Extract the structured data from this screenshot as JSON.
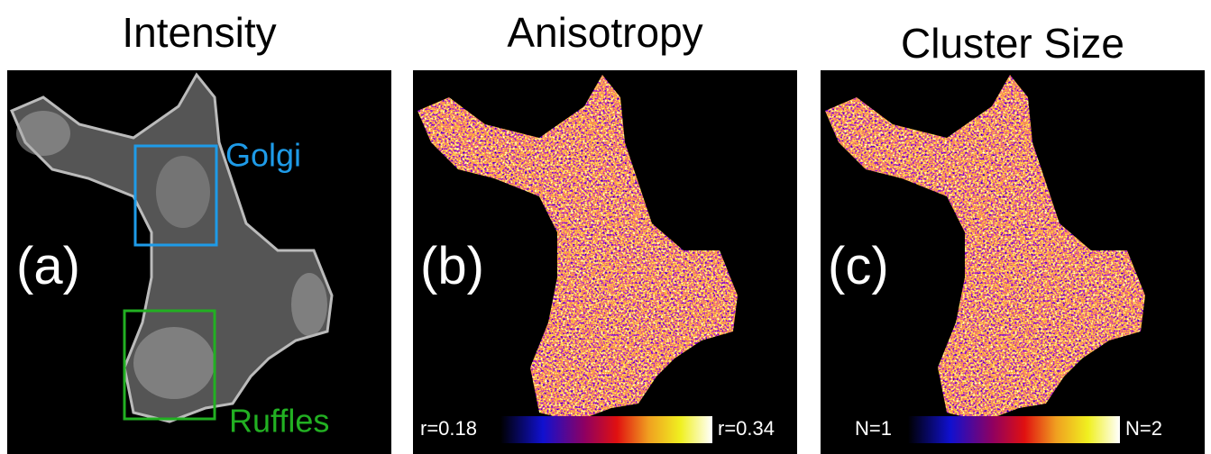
{
  "panels": [
    {
      "title": "Intensity",
      "label": "(a)",
      "boxes": [
        {
          "label": "Golgi"
        },
        {
          "label": "Ruffles"
        }
      ]
    },
    {
      "title": "Anisotropy",
      "label": "(b)",
      "colorbar": {
        "min_label": "r=0.18",
        "max_label": "r=0.34"
      }
    },
    {
      "title": "Cluster Size",
      "label": "(c)",
      "colorbar": {
        "min_label": "N=1",
        "max_label": "N=2"
      }
    }
  ]
}
